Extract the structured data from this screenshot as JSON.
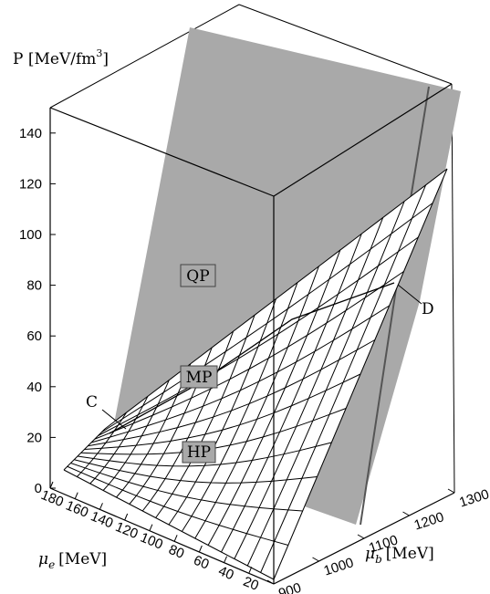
{
  "chart_data": {
    "type": "surface3d",
    "axes": {
      "z": {
        "label": "P [MeV/fm",
        "label_sup": "3",
        "label_close": "]",
        "ticks": [
          "0",
          "20",
          "40",
          "60",
          "80",
          "100",
          "120",
          "140"
        ],
        "range": [
          0,
          150
        ]
      },
      "mu_e": {
        "label_symbol": "μ",
        "label_sub": "e",
        "label_unit": "[MeV]",
        "ticks": [
          "180",
          "160",
          "140",
          "120",
          "100",
          "80",
          "60",
          "40",
          "20"
        ],
        "range": [
          0,
          180
        ]
      },
      "mu_b": {
        "label_symbol": "μ",
        "label_sub": "b",
        "label_unit": "[MeV]",
        "ticks": [
          "900",
          "1000",
          "1100",
          "1200",
          "1300"
        ],
        "range": [
          900,
          1300
        ]
      }
    },
    "regions": [
      {
        "label": "QP",
        "color": "#a9a9a9"
      },
      {
        "label": "MP"
      },
      {
        "label": "HP",
        "color": "#000000"
      }
    ],
    "points": [
      {
        "label": "C"
      },
      {
        "label": "D"
      }
    ]
  }
}
